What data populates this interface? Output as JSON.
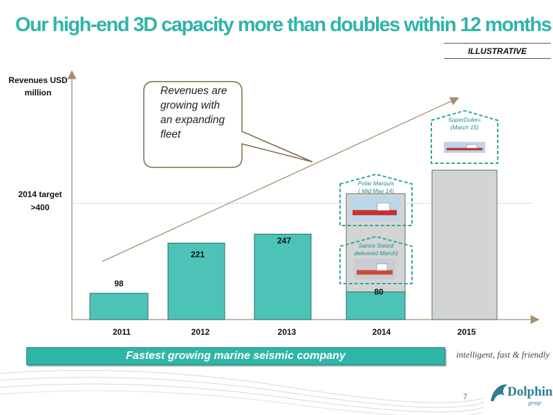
{
  "slide": {
    "title": "Our high-end 3D capacity more than doubles within 12 months",
    "tag": "ILLUSTRATIVE",
    "banner": "Fastest growing marine seismic company",
    "tagline": "intelligent, fast & friendly",
    "page_number": "7",
    "logo_text": "Dolphin",
    "logo_sub": "group"
  },
  "colors": {
    "accent": "#2fb5a8",
    "bar": "#4cc3b6",
    "forecast_bar": "#d3d5d4",
    "callout_border": "#7a6a48"
  },
  "chart_data": {
    "type": "bar",
    "ylabel": "Revenues USD million",
    "categories": [
      "2011",
      "2012",
      "2013",
      "2014",
      "2015"
    ],
    "values": [
      98,
      221,
      247,
      80,
      null
    ],
    "value_labels": [
      "98",
      "221",
      "247",
      "80",
      ""
    ],
    "target_line": {
      "label": "2014 target >400",
      "value": 400
    },
    "annotations": {
      "callout": "Revenues are growing with an expanding fleet",
      "vessels": [
        {
          "name": "SuperDuke» (March 15)"
        },
        {
          "name": "Polar Marquis ( Mid May 14)"
        },
        {
          "name": "Sanco Sword delivered March)"
        }
      ]
    },
    "trend_arrow": "up",
    "grid": false
  }
}
